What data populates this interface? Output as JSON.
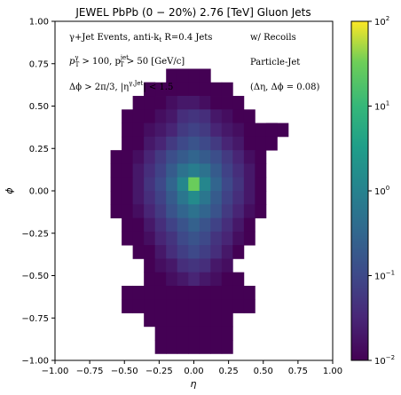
{
  "chart_data": {
    "type": "heatmap",
    "title": "JEWEL PbPb (0 − 20%) 2.76 [TeV] Gluon Jets",
    "xlabel": "η",
    "ylabel": "ϕ",
    "xlim": [
      -1.0,
      1.0
    ],
    "ylim": [
      -1.0,
      1.0
    ],
    "bin_width": 0.08,
    "x_ticks": [
      "−1.00",
      "−0.75",
      "−0.50",
      "−0.25",
      "0.00",
      "0.25",
      "0.50",
      "0.75",
      "1.00"
    ],
    "y_ticks": [
      "−1.00",
      "−0.75",
      "−0.50",
      "−0.25",
      "0.00",
      "0.25",
      "0.50",
      "0.75",
      "1.00"
    ],
    "x_tick_values": [
      -1.0,
      -0.75,
      -0.5,
      -0.25,
      0.0,
      0.25,
      0.5,
      0.75,
      1.0
    ],
    "y_tick_values": [
      -1.0,
      -0.75,
      -0.5,
      -0.25,
      0.0,
      0.25,
      0.5,
      0.75,
      1.0
    ],
    "colorbar": {
      "scale": "log",
      "range": [
        0.01,
        100
      ],
      "ticks": [
        {
          "value": 100,
          "base": "10",
          "exp": "2"
        },
        {
          "value": 10,
          "base": "10",
          "exp": "1"
        },
        {
          "value": 1,
          "base": "10",
          "exp": "0"
        },
        {
          "value": 0.1,
          "base": "10",
          "exp": "−1"
        },
        {
          "value": 0.01,
          "base": "10",
          "exp": "−2"
        }
      ],
      "colormap": "viridis"
    },
    "annotations": [
      {
        "text": "γ+Jet Events, anti-k",
        "sub": "t",
        "tail": " R=0.4 Jets"
      },
      {
        "text": "p",
        "sup": "γ",
        "sub": "T",
        "tail": " > 100, p",
        "sup2": "jet",
        "sub2": "T",
        "tail2": " > 50 [GeV/c]"
      },
      {
        "text": "Δϕ > 2π/3, |η",
        "sup": "γ,Jet",
        "tail": "| < 1.5"
      },
      {
        "text": "w/ Recoils"
      },
      {
        "text": "Particle-Jet"
      },
      {
        "text": "(Δη, Δϕ = 0.08)"
      }
    ],
    "rows": [
      {
        "y": 0.64,
        "x_start": -0.2,
        "count": 4,
        "values": [
          0.01,
          0.01,
          0.01,
          0.01
        ]
      },
      {
        "y": 0.56,
        "x_start": -0.36,
        "count": 8,
        "values": [
          0.01,
          0.01,
          0.01,
          0.01,
          0.01,
          0.01,
          0.01,
          0.01
        ]
      },
      {
        "y": 0.48,
        "x_start": -0.44,
        "count": 10,
        "values": [
          0.01,
          0.01,
          0.01,
          0.015,
          0.02,
          0.02,
          0.015,
          0.01,
          0.01,
          0.01
        ]
      },
      {
        "y": 0.4,
        "x_start": -0.52,
        "count": 12,
        "values": [
          0.01,
          0.01,
          0.01,
          0.015,
          0.02,
          0.04,
          0.05,
          0.04,
          0.02,
          0.015,
          0.01,
          0.01
        ]
      },
      {
        "y": 0.32,
        "x_start": -0.52,
        "count": 14,
        "values": [
          0.01,
          0.01,
          0.015,
          0.02,
          0.03,
          0.06,
          0.08,
          0.06,
          0.03,
          0.02,
          0.015,
          0.01,
          0.01,
          0.01
        ]
      },
      {
        "y": 0.24,
        "x_start": -0.52,
        "count": 13,
        "values": [
          0.01,
          0.01,
          0.02,
          0.03,
          0.06,
          0.1,
          0.15,
          0.1,
          0.06,
          0.03,
          0.02,
          0.01,
          0.01
        ]
      },
      {
        "y": 0.16,
        "x_start": -0.6,
        "count": 14,
        "values": [
          0.01,
          0.01,
          0.015,
          0.03,
          0.06,
          0.12,
          0.2,
          0.3,
          0.2,
          0.12,
          0.06,
          0.03,
          0.015,
          0.01
        ]
      },
      {
        "y": 0.08,
        "x_start": -0.6,
        "count": 14,
        "values": [
          0.01,
          0.01,
          0.02,
          0.04,
          0.08,
          0.2,
          0.5,
          0.8,
          0.5,
          0.2,
          0.08,
          0.04,
          0.02,
          0.01
        ]
      },
      {
        "y": 0.0,
        "x_start": -0.6,
        "count": 14,
        "values": [
          0.01,
          0.01,
          0.02,
          0.05,
          0.1,
          0.3,
          1.2,
          30,
          1.2,
          0.3,
          0.1,
          0.05,
          0.02,
          0.01
        ]
      },
      {
        "y": -0.08,
        "x_start": -0.6,
        "count": 14,
        "values": [
          0.01,
          0.01,
          0.02,
          0.04,
          0.08,
          0.2,
          0.6,
          1.5,
          0.6,
          0.2,
          0.08,
          0.04,
          0.02,
          0.01
        ]
      },
      {
        "y": -0.16,
        "x_start": -0.6,
        "count": 14,
        "values": [
          0.01,
          0.01,
          0.015,
          0.03,
          0.06,
          0.15,
          0.3,
          0.5,
          0.3,
          0.15,
          0.06,
          0.03,
          0.015,
          0.01
        ]
      },
      {
        "y": -0.24,
        "x_start": -0.52,
        "count": 12,
        "values": [
          0.01,
          0.01,
          0.02,
          0.04,
          0.08,
          0.15,
          0.25,
          0.15,
          0.08,
          0.04,
          0.02,
          0.01
        ]
      },
      {
        "y": -0.32,
        "x_start": -0.52,
        "count": 12,
        "values": [
          0.01,
          0.01,
          0.015,
          0.03,
          0.05,
          0.1,
          0.15,
          0.1,
          0.05,
          0.03,
          0.015,
          0.01
        ]
      },
      {
        "y": -0.4,
        "x_start": -0.44,
        "count": 10,
        "values": [
          0.01,
          0.01,
          0.02,
          0.04,
          0.07,
          0.1,
          0.07,
          0.04,
          0.02,
          0.01
        ]
      },
      {
        "y": -0.48,
        "x_start": -0.36,
        "count": 8,
        "values": [
          0.01,
          0.015,
          0.02,
          0.04,
          0.05,
          0.04,
          0.02,
          0.015
        ]
      },
      {
        "y": -0.56,
        "x_start": -0.36,
        "count": 9,
        "values": [
          0.01,
          0.01,
          0.015,
          0.02,
          0.03,
          0.02,
          0.015,
          0.01,
          0.01
        ]
      },
      {
        "y": -0.64,
        "x_start": -0.52,
        "count": 12,
        "values": [
          0.01,
          0.01,
          0.01,
          0.01,
          0.01,
          0.01,
          0.01,
          0.01,
          0.01,
          0.01,
          0.01,
          0.01
        ]
      },
      {
        "y": -0.72,
        "x_start": -0.52,
        "count": 12,
        "values": [
          0.01,
          0.01,
          0.01,
          0.01,
          0.01,
          0.01,
          0.01,
          0.01,
          0.01,
          0.01,
          0.01,
          0.01
        ]
      },
      {
        "y": -0.8,
        "x_start": -0.36,
        "count": 8,
        "values": [
          0.01,
          0.01,
          0.01,
          0.01,
          0.01,
          0.01,
          0.01,
          0.01
        ]
      },
      {
        "y": -0.88,
        "x_start": -0.28,
        "count": 7,
        "values": [
          0.01,
          0.01,
          0.01,
          0.01,
          0.01,
          0.01,
          0.01
        ]
      },
      {
        "y": -0.96,
        "x_start": -0.28,
        "count": 7,
        "values": [
          0.01,
          0.01,
          0.01,
          0.01,
          0.01,
          0.01,
          0.01
        ]
      }
    ],
    "extra_cells": [
      {
        "x": -0.36,
        "y": 0.56,
        "value": 0.01
      },
      {
        "x": 0.52,
        "y": 0.32,
        "value": 0.01
      },
      {
        "x": 0.6,
        "y": 0.32,
        "value": 0.01
      },
      {
        "x": 0.52,
        "y": 0.24,
        "value": 0.01
      }
    ]
  }
}
